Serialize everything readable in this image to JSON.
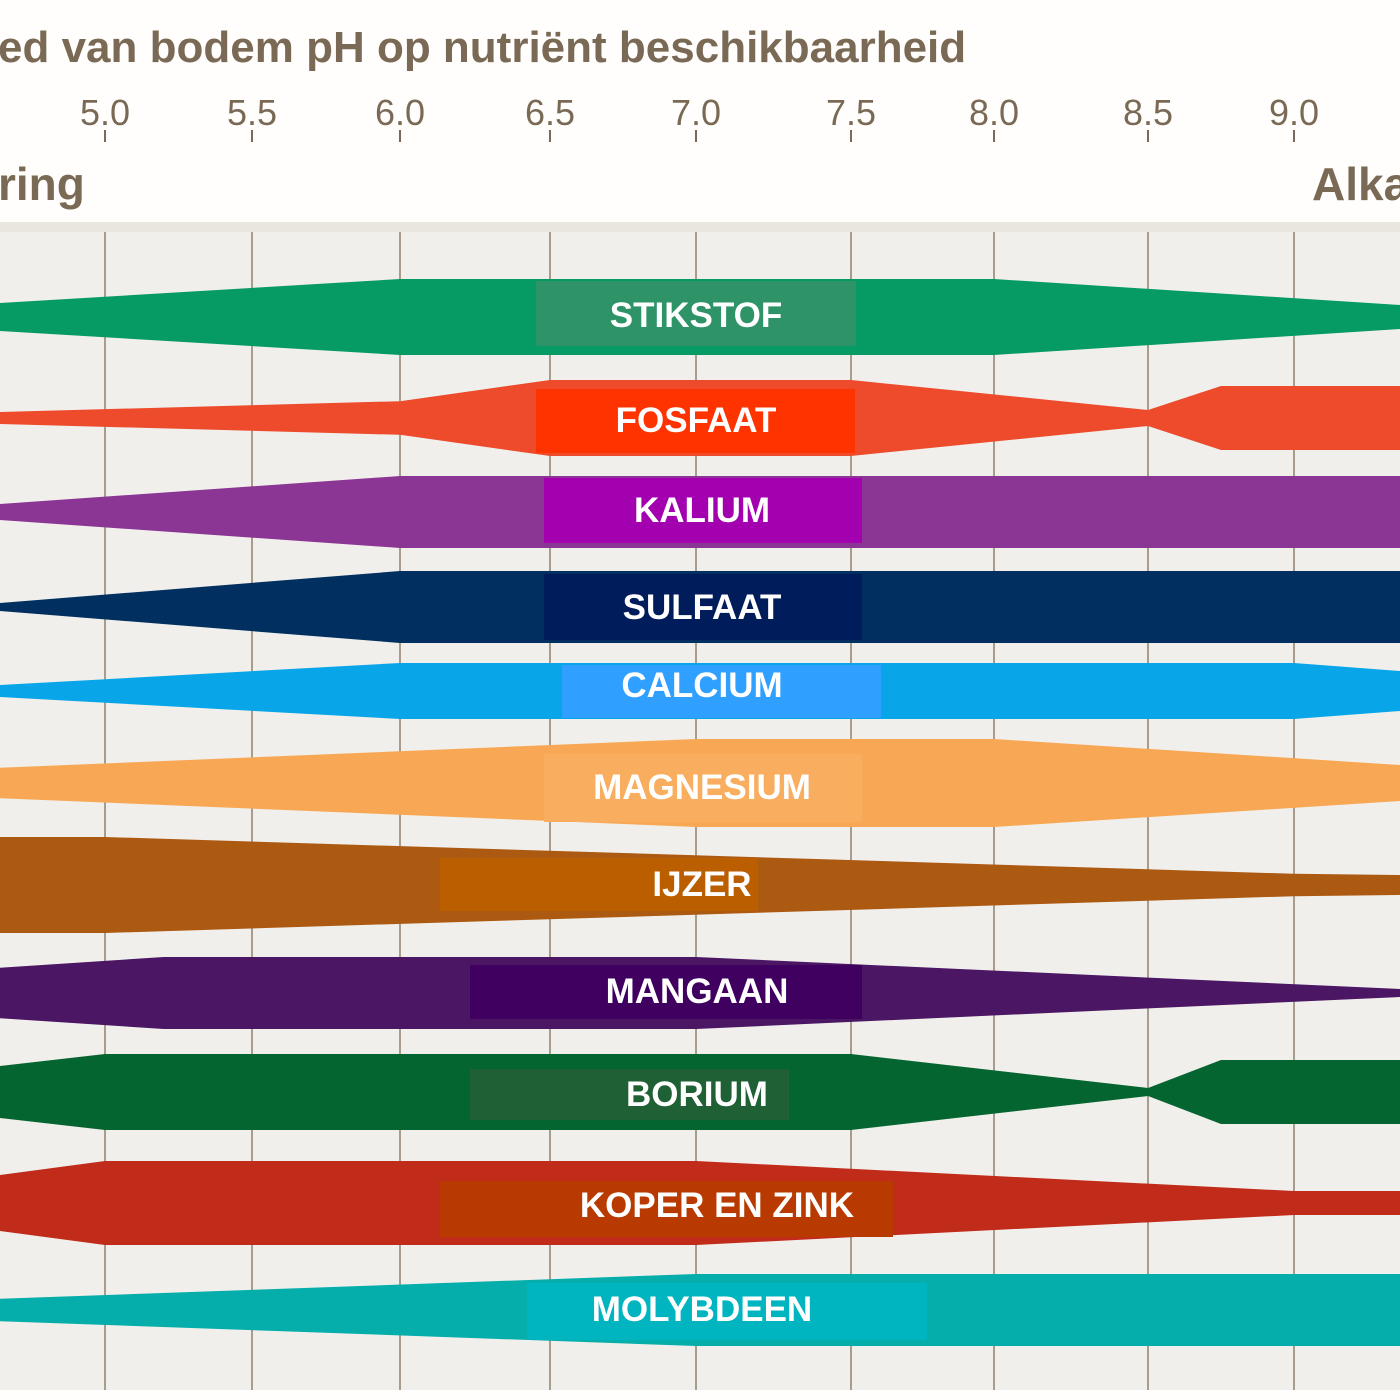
{
  "chart_data": {
    "type": "area",
    "title": "ed van bodem pH op nutriënt beschikbaarheid",
    "xlabel_left": "ring",
    "xlabel_right": "Alka",
    "xticks": [
      "5.0",
      "5.5",
      "6.0",
      "6.5",
      "7.0",
      "7.5",
      "8.0",
      "8.5",
      "9.0"
    ],
    "xtick_values": [
      5.0,
      5.5,
      6.0,
      6.5,
      7.0,
      7.5,
      8.0,
      8.5,
      9.0
    ],
    "xlim": [
      4.64,
      9.36
    ],
    "grid": "vertical",
    "value_meaning": "relative availability (band half-thickness, 0-1.2)",
    "series": [
      {
        "name": "STIKSTOF",
        "color": "#069a65",
        "label_color": "#2e9468",
        "points": [
          [
            4.64,
            0.35
          ],
          [
            6.0,
            0.95
          ],
          [
            8.0,
            0.95
          ],
          [
            9.36,
            0.3
          ]
        ]
      },
      {
        "name": "FOSFAAT",
        "color": "#ee4a2c",
        "label_color": "#ff3300",
        "points": [
          [
            4.64,
            0.15
          ],
          [
            6.0,
            0.42
          ],
          [
            6.5,
            0.95
          ],
          [
            7.5,
            0.95
          ],
          [
            8.5,
            0.2
          ],
          [
            8.75,
            0.8
          ],
          [
            9.36,
            0.8
          ]
        ]
      },
      {
        "name": "KALIUM",
        "color": "#8b3594",
        "label_color": "#a300b0",
        "points": [
          [
            4.64,
            0.2
          ],
          [
            6.0,
            0.9
          ],
          [
            9.36,
            0.9
          ]
        ]
      },
      {
        "name": "SULFAAT",
        "color": "#002f60",
        "label_color": "#001c5a",
        "points": [
          [
            4.64,
            0.1
          ],
          [
            6.0,
            0.9
          ],
          [
            9.36,
            0.9
          ]
        ]
      },
      {
        "name": "CALCIUM",
        "color": "#08a6e8",
        "label_color": "#2fa0ff",
        "points": [
          [
            4.64,
            0.15
          ],
          [
            6.0,
            0.7
          ],
          [
            9.0,
            0.7
          ],
          [
            9.36,
            0.5
          ]
        ]
      },
      {
        "name": "MAGNESIUM",
        "color": "#f8a854",
        "label_color": "#f9ad5e",
        "points": [
          [
            4.64,
            0.38
          ],
          [
            7.0,
            1.1
          ],
          [
            8.0,
            1.1
          ],
          [
            9.36,
            0.45
          ]
        ]
      },
      {
        "name": "IJZER",
        "color": "#ac5a12",
        "label_color": "#ba5e00",
        "points": [
          [
            4.64,
            1.2
          ],
          [
            5.0,
            1.2
          ],
          [
            9.0,
            0.28
          ],
          [
            9.36,
            0.25
          ]
        ]
      },
      {
        "name": "MANGAAN",
        "color": "#4b1664",
        "label_color": "#3f0060",
        "points": [
          [
            4.64,
            0.63
          ],
          [
            5.2,
            0.9
          ],
          [
            7.0,
            0.9
          ],
          [
            9.36,
            0.1
          ]
        ]
      },
      {
        "name": "BORIUM",
        "color": "#056531",
        "label_color": "#1f6034",
        "points": [
          [
            4.64,
            0.65
          ],
          [
            5.0,
            0.95
          ],
          [
            7.5,
            0.95
          ],
          [
            8.5,
            0.1
          ],
          [
            8.75,
            0.8
          ],
          [
            9.36,
            0.8
          ]
        ]
      },
      {
        "name": "KOPER EN ZINK",
        "color": "#c02b1a",
        "label_color": "#b83a00",
        "points": [
          [
            4.64,
            0.7
          ],
          [
            5.0,
            1.05
          ],
          [
            7.0,
            1.05
          ],
          [
            9.0,
            0.3
          ],
          [
            9.36,
            0.3
          ]
        ]
      },
      {
        "name": "MOLYBDEEN",
        "color": "#05aeaa",
        "label_color": "#00b5c0",
        "points": [
          [
            4.64,
            0.28
          ],
          [
            7.0,
            0.9
          ],
          [
            9.36,
            0.9
          ]
        ]
      }
    ]
  }
}
